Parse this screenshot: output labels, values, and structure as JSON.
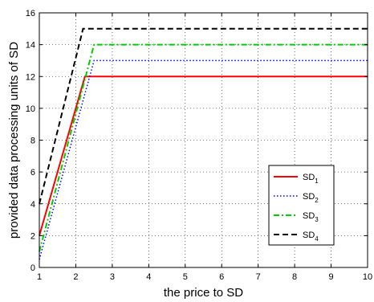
{
  "chart_data": {
    "type": "line",
    "xlabel": "the price to SD",
    "ylabel": "provided data processing units of SD",
    "xlim": [
      1,
      10
    ],
    "ylim": [
      0,
      16
    ],
    "xticks": [
      1,
      2,
      3,
      4,
      5,
      6,
      7,
      8,
      9,
      10
    ],
    "yticks": [
      0,
      2,
      4,
      6,
      8,
      10,
      12,
      14,
      16
    ],
    "grid": true,
    "legend_position": "lower-right",
    "series": [
      {
        "name": "SD",
        "subscript": "1",
        "color": "#ff0000",
        "dash": "solid",
        "x": [
          1,
          2.25,
          10
        ],
        "y": [
          2.0,
          12,
          12
        ]
      },
      {
        "name": "SD",
        "subscript": "2",
        "color": "#0000ff",
        "dash": "dotted",
        "x": [
          1,
          2.5,
          10
        ],
        "y": [
          0.5,
          13,
          13
        ]
      },
      {
        "name": "SD",
        "subscript": "3",
        "color": "#00cc00",
        "dash": "dashdot",
        "x": [
          1,
          2.5,
          10
        ],
        "y": [
          1.0,
          14,
          14
        ]
      },
      {
        "name": "SD",
        "subscript": "4",
        "color": "#000000",
        "dash": "dashed",
        "x": [
          1,
          2.2,
          10
        ],
        "y": [
          4.0,
          15,
          15
        ]
      }
    ]
  }
}
